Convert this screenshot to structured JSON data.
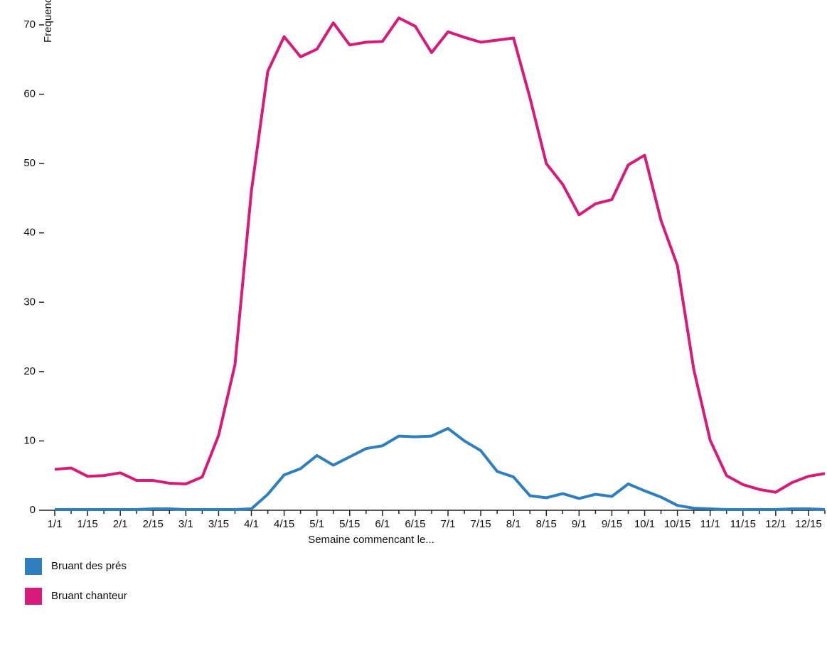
{
  "chart_data": {
    "type": "line",
    "y_label": "Frequence",
    "x_label": "Semaine commencant le...",
    "categories": [
      "1/1",
      null,
      "1/15",
      null,
      "2/1",
      null,
      "2/15",
      null,
      "3/1",
      null,
      "3/15",
      null,
      "4/1",
      null,
      "4/15",
      null,
      "5/1",
      null,
      "5/15",
      null,
      "6/1",
      null,
      "6/15",
      null,
      "7/1",
      null,
      "7/15",
      null,
      "8/1",
      null,
      "8/15",
      null,
      "9/1",
      null,
      "9/15",
      null,
      "10/1",
      null,
      "10/15",
      null,
      "11/1",
      null,
      "11/15",
      null,
      "12/1",
      null,
      "12/15",
      null
    ],
    "series": [
      {
        "name": "Bruant des prés",
        "color": "#2e7fbf",
        "values": [
          0.1,
          0.1,
          0.1,
          0.1,
          0.1,
          0.1,
          0.2,
          0.2,
          0.1,
          0.1,
          0.1,
          0.1,
          0.2,
          2.3,
          5.1,
          6.0,
          7.9,
          6.5,
          7.7,
          8.9,
          9.3,
          10.7,
          10.6,
          10.7,
          11.8,
          10.0,
          8.6,
          5.6,
          4.8,
          2.1,
          1.8,
          2.4,
          1.7,
          2.3,
          2.0,
          3.8,
          2.8,
          1.9,
          0.7,
          0.3,
          0.2,
          0.1,
          0.1,
          0.1,
          0.1,
          0.2,
          0.2,
          0.1
        ]
      },
      {
        "name": "Bruant chanteur",
        "color": "#d81b7a",
        "values": [
          5.9,
          6.1,
          4.9,
          5.0,
          5.4,
          4.3,
          4.3,
          3.9,
          3.8,
          4.8,
          10.8,
          21,
          46,
          63.3,
          68.3,
          65.4,
          66.5,
          70.3,
          67.1,
          67.5,
          67.6,
          71,
          69.8,
          66,
          69,
          68.2,
          67.5,
          67.8,
          68.1,
          59.5,
          50,
          47,
          42.6,
          44.2,
          44.8,
          49.8,
          51.2,
          41.8,
          35.3,
          20.3,
          10.1,
          5.0,
          3.7,
          3.0,
          2.6,
          4.0,
          4.9,
          5.3
        ]
      }
    ],
    "ylim": [
      0,
      70
    ],
    "yticks": [
      0,
      10,
      20,
      30,
      40,
      50,
      60,
      70
    ]
  }
}
